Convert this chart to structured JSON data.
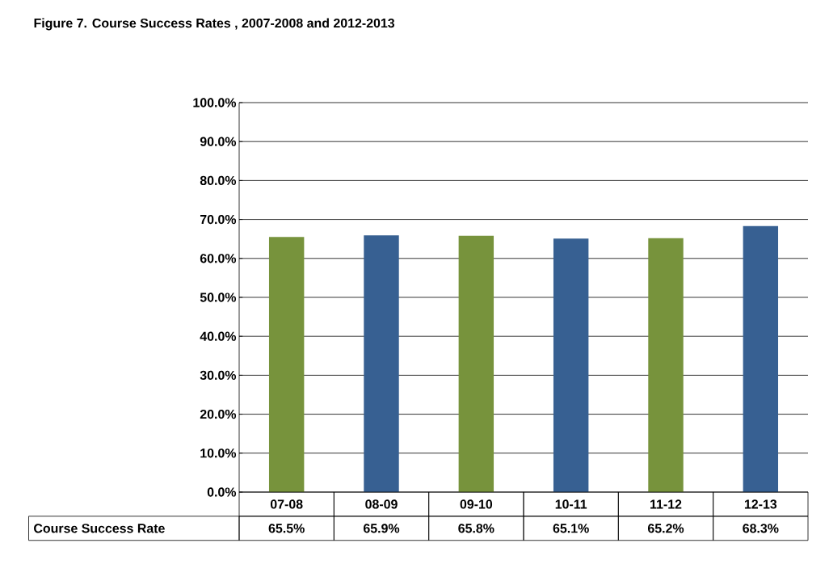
{
  "chart_data": {
    "type": "bar",
    "title": "Figure 7. Course Success Rates , 2007-2008 and 2012-2013",
    "categories": [
      "07-08",
      "08-09",
      "09-10",
      "10-11",
      "11-12",
      "12-13"
    ],
    "series": [
      {
        "name": "Course Success Rate",
        "colors": [
          "#77933c",
          "#376092",
          "#77933c",
          "#376092",
          "#77933c",
          "#376092"
        ],
        "values": [
          65.5,
          65.9,
          65.8,
          65.1,
          65.2,
          68.3
        ],
        "value_labels": [
          "65.5%",
          "65.9%",
          "65.8%",
          "65.1%",
          "65.2%",
          "68.3%"
        ]
      }
    ],
    "ylim": [
      0,
      100
    ],
    "yticks": [
      {
        "value": 0,
        "label": "0.0%"
      },
      {
        "value": 10,
        "label": "10.0%"
      },
      {
        "value": 20,
        "label": "20.0%"
      },
      {
        "value": 30,
        "label": "30.0%"
      },
      {
        "value": 40,
        "label": "40.0%"
      },
      {
        "value": 50,
        "label": "50.0%"
      },
      {
        "value": 60,
        "label": "60.0%"
      },
      {
        "value": 70,
        "label": "70.0%"
      },
      {
        "value": 80,
        "label": "80.0%"
      },
      {
        "value": 90,
        "label": "90.0%"
      },
      {
        "value": 100,
        "label": "100.0%"
      }
    ],
    "grid": "y"
  }
}
